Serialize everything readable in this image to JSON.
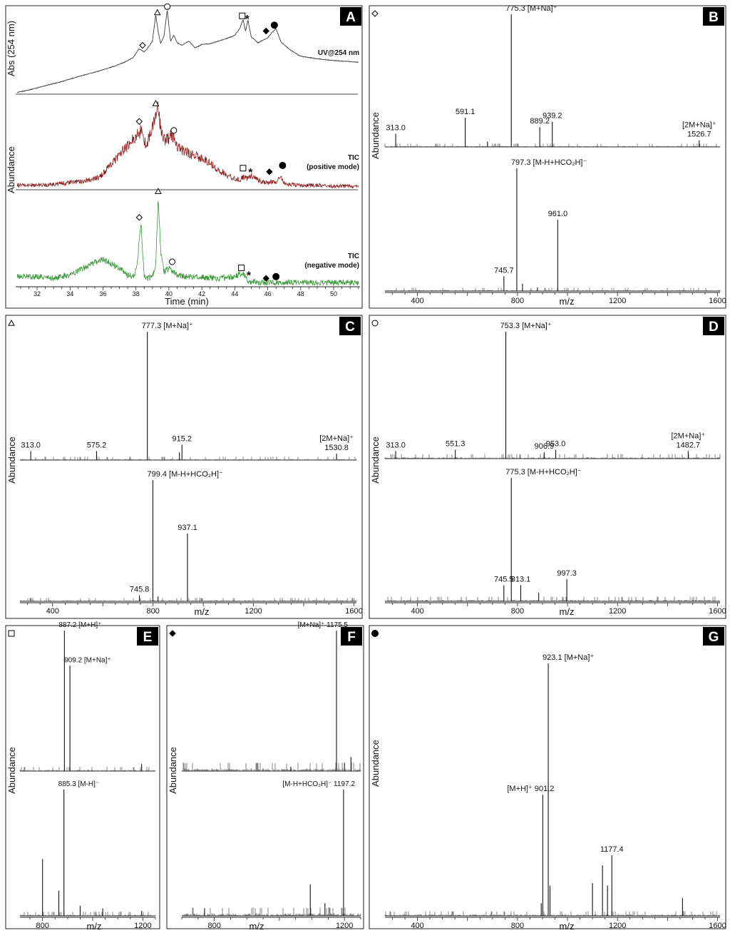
{
  "figure": {
    "panel_labels": [
      "A",
      "B",
      "C",
      "D",
      "E",
      "F",
      "G"
    ],
    "abundance_label": "Abundance",
    "mz_label": "m/z"
  },
  "chart_data": [
    {
      "panel": "A",
      "type": "line",
      "xlabel": "Time (min)",
      "xlim": [
        30.7,
        51.6
      ],
      "x_ticks": [
        32,
        34,
        36,
        38,
        40,
        42,
        44,
        46,
        48,
        50
      ],
      "ylabel_top": "Abs (254 nm)",
      "ylabel_bottom": "Abundance",
      "series": [
        {
          "name": "UV@254 nm",
          "label_lines": [
            "UV@254 nm"
          ],
          "color": "#3a3a3a",
          "x": [
            30.8,
            31.5,
            32.5,
            33.5,
            34.5,
            35.5,
            36.5,
            37.2,
            37.8,
            38.2,
            38.5,
            38.8,
            39.0,
            39.2,
            39.35,
            39.5,
            39.7,
            39.9,
            40.1,
            40.3,
            40.5,
            40.8,
            41.2,
            41.6,
            42.0,
            42.5,
            43.0,
            43.5,
            44.0,
            44.3,
            44.5,
            44.65,
            44.8,
            45.0,
            45.2,
            45.4,
            45.7,
            46.0,
            46.2,
            46.5,
            46.8,
            47.1,
            47.4,
            48.0,
            49.0,
            50.0,
            51.5
          ],
          "y": [
            0.02,
            0.05,
            0.1,
            0.15,
            0.21,
            0.26,
            0.32,
            0.37,
            0.43,
            0.54,
            0.5,
            0.57,
            0.63,
            0.94,
            0.74,
            0.6,
            0.69,
            1.0,
            0.63,
            0.7,
            0.61,
            0.58,
            0.63,
            0.55,
            0.59,
            0.6,
            0.63,
            0.66,
            0.7,
            0.78,
            0.89,
            0.75,
            0.88,
            0.68,
            0.65,
            0.61,
            0.64,
            0.67,
            0.72,
            0.78,
            0.62,
            0.57,
            0.52,
            0.45,
            0.42,
            0.4,
            0.38
          ],
          "markers": [
            {
              "symbol": "diamond-open",
              "x": 38.4,
              "y": 0.58
            },
            {
              "symbol": "triangle-open",
              "x": 39.3,
              "y": 0.97
            },
            {
              "symbol": "circle-open",
              "x": 39.9,
              "y": 1.04
            },
            {
              "symbol": "square-open",
              "x": 44.45,
              "y": 0.93
            },
            {
              "symbol": "asterisk",
              "x": 44.75,
              "y": 0.9
            },
            {
              "symbol": "diamond-filled",
              "x": 45.9,
              "y": 0.75
            },
            {
              "symbol": "circle-filled",
              "x": 46.4,
              "y": 0.82
            }
          ]
        },
        {
          "name": "TIC (positive mode)",
          "label_lines": [
            "TIC",
            "(positive mode)"
          ],
          "color": "#8b1b1b",
          "x": [
            30.8,
            32.0,
            33.0,
            34.0,
            35.0,
            35.8,
            36.2,
            36.6,
            37.0,
            37.5,
            38.0,
            38.3,
            38.6,
            39.0,
            39.3,
            39.6,
            39.9,
            40.2,
            40.6,
            41.0,
            41.5,
            42.0,
            42.5,
            43.0,
            43.5,
            44.0,
            44.3,
            44.5,
            44.8,
            45.0,
            45.5,
            46.0,
            46.5,
            46.8,
            47.0,
            47.3,
            48.0,
            49.0,
            50.0,
            51.5
          ],
          "y": [
            0.05,
            0.05,
            0.06,
            0.08,
            0.1,
            0.14,
            0.22,
            0.3,
            0.4,
            0.48,
            0.6,
            0.66,
            0.5,
            0.68,
            0.92,
            0.58,
            0.55,
            0.62,
            0.46,
            0.42,
            0.38,
            0.35,
            0.3,
            0.22,
            0.16,
            0.12,
            0.11,
            0.14,
            0.12,
            0.16,
            0.1,
            0.08,
            0.09,
            0.14,
            0.08,
            0.06,
            0.05,
            0.05,
            0.04,
            0.04
          ],
          "markers": [
            {
              "symbol": "diamond-open",
              "x": 38.2,
              "y": 0.76
            },
            {
              "symbol": "triangle-open",
              "x": 39.2,
              "y": 0.96
            },
            {
              "symbol": "circle-open",
              "x": 40.3,
              "y": 0.66
            },
            {
              "symbol": "square-open",
              "x": 44.5,
              "y": 0.24
            },
            {
              "symbol": "asterisk",
              "x": 44.95,
              "y": 0.2
            },
            {
              "symbol": "diamond-filled",
              "x": 46.1,
              "y": 0.2
            },
            {
              "symbol": "circle-filled",
              "x": 46.9,
              "y": 0.27
            }
          ]
        },
        {
          "name": "TIC (negative mode)",
          "label_lines": [
            "TIC",
            "(negative mode)"
          ],
          "color": "#3a9a3a",
          "x": [
            30.8,
            32.0,
            33.0,
            34.0,
            34.8,
            35.5,
            36.0,
            36.5,
            37.0,
            37.5,
            37.9,
            38.1,
            38.3,
            38.5,
            38.7,
            39.0,
            39.2,
            39.35,
            39.5,
            39.7,
            40.0,
            40.5,
            41.0,
            41.5,
            42.0,
            43.0,
            44.0,
            44.5,
            44.8,
            45.0,
            45.5,
            46.0,
            46.5,
            47.0,
            48.0,
            50.0,
            51.5
          ],
          "y": [
            0.1,
            0.1,
            0.08,
            0.12,
            0.2,
            0.26,
            0.3,
            0.25,
            0.2,
            0.12,
            0.1,
            0.3,
            0.72,
            0.12,
            0.08,
            0.1,
            0.22,
            1.0,
            0.4,
            0.15,
            0.2,
            0.12,
            0.1,
            0.1,
            0.09,
            0.08,
            0.1,
            0.14,
            0.05,
            0.04,
            0.03,
            0.03,
            0.03,
            0.03,
            0.03,
            0.03,
            0.03
          ],
          "markers": [
            {
              "symbol": "diamond-open",
              "x": 38.2,
              "y": 0.78
            },
            {
              "symbol": "triangle-open",
              "x": 39.35,
              "y": 1.08
            },
            {
              "symbol": "circle-open",
              "x": 40.2,
              "y": 0.27
            },
            {
              "symbol": "square-open",
              "x": 44.4,
              "y": 0.2
            },
            {
              "symbol": "asterisk",
              "x": 44.85,
              "y": 0.12
            },
            {
              "symbol": "diamond-filled",
              "x": 45.9,
              "y": 0.08
            },
            {
              "symbol": "circle-filled",
              "x": 46.5,
              "y": 0.1
            }
          ]
        }
      ]
    },
    {
      "panel": "B",
      "type": "bar",
      "compound_marker": "diamond-open",
      "xlabel": "m/z",
      "xlim": [
        270,
        1610
      ],
      "x_ticks": [
        400,
        800,
        1200,
        1600
      ],
      "spectra": [
        {
          "mode": "positive",
          "peaks": [
            {
              "mz": 313.0,
              "rel": 0.1,
              "label": "313.0"
            },
            {
              "mz": 591.1,
              "rel": 0.22,
              "label": "591.1"
            },
            {
              "mz": 680,
              "rel": 0.04
            },
            {
              "mz": 775.3,
              "rel": 1.0,
              "label": "775.3 [M+Na]⁺"
            },
            {
              "mz": 889.2,
              "rel": 0.15,
              "label": "889.2"
            },
            {
              "mz": 939.2,
              "rel": 0.19,
              "label": "939.2"
            },
            {
              "mz": 1526.7,
              "rel": 0.05,
              "label": "1526.7",
              "extra_label": "[2M+Na]⁺"
            }
          ]
        },
        {
          "mode": "negative",
          "peaks": [
            {
              "mz": 745.7,
              "rel": 0.12,
              "label": "745.7"
            },
            {
              "mz": 797.3,
              "rel": 1.0,
              "label": "797.3 [M-H+HCO₂H]⁻"
            },
            {
              "mz": 820,
              "rel": 0.06
            },
            {
              "mz": 880,
              "rel": 0.03
            },
            {
              "mz": 961.0,
              "rel": 0.58,
              "label": "961.0"
            }
          ]
        }
      ]
    },
    {
      "panel": "C",
      "type": "bar",
      "compound_marker": "triangle-open",
      "xlabel": "m/z",
      "xlim": [
        270,
        1610
      ],
      "x_ticks": [
        400,
        800,
        1200,
        1600
      ],
      "spectra": [
        {
          "mode": "positive",
          "peaks": [
            {
              "mz": 313.0,
              "rel": 0.07,
              "label": "313.0"
            },
            {
              "mz": 575.2,
              "rel": 0.07,
              "label": "575.2"
            },
            {
              "mz": 777.3,
              "rel": 1.0,
              "label": "777.3 [M+Na]⁺"
            },
            {
              "mz": 905,
              "rel": 0.06
            },
            {
              "mz": 915.2,
              "rel": 0.12,
              "label": "915.2"
            },
            {
              "mz": 1530.8,
              "rel": 0.05,
              "label": "1530.8",
              "extra_label": "[2M+Na]⁺"
            }
          ]
        },
        {
          "mode": "negative",
          "peaks": [
            {
              "mz": 745.8,
              "rel": 0.05,
              "label": "745.8"
            },
            {
              "mz": 799.4,
              "rel": 1.0,
              "label": "799.4 [M-H+HCO₂H]⁻"
            },
            {
              "mz": 820,
              "rel": 0.04
            },
            {
              "mz": 937.1,
              "rel": 0.56,
              "label": "937.1"
            }
          ]
        }
      ]
    },
    {
      "panel": "D",
      "type": "bar",
      "compound_marker": "circle-open",
      "xlabel": "m/z",
      "xlim": [
        270,
        1610
      ],
      "x_ticks": [
        400,
        800,
        1200,
        1600
      ],
      "spectra": [
        {
          "mode": "positive",
          "peaks": [
            {
              "mz": 313.0,
              "rel": 0.06,
              "label": "313.0"
            },
            {
              "mz": 551.3,
              "rel": 0.07,
              "label": "551.3"
            },
            {
              "mz": 753.3,
              "rel": 1.0,
              "label": "753.3 [M+Na]⁺"
            },
            {
              "mz": 906.9,
              "rel": 0.05,
              "label": "906.9"
            },
            {
              "mz": 953.0,
              "rel": 0.07,
              "label": "953.0"
            },
            {
              "mz": 1482.7,
              "rel": 0.06,
              "label": "1482.7",
              "extra_label": "[2M+Na]⁺"
            }
          ]
        },
        {
          "mode": "negative",
          "peaks": [
            {
              "mz": 745.5,
              "rel": 0.13,
              "label": "745.5"
            },
            {
              "mz": 775.3,
              "rel": 1.0,
              "label": "775.3 [M-H+HCO₂H]⁻"
            },
            {
              "mz": 813.1,
              "rel": 0.13,
              "label": "813.1"
            },
            {
              "mz": 885,
              "rel": 0.07
            },
            {
              "mz": 997.3,
              "rel": 0.18,
              "label": "997.3"
            }
          ]
        }
      ]
    },
    {
      "panel": "E",
      "type": "bar",
      "compound_marker": "square-open",
      "xlabel": "m/z",
      "xlim": [
        710,
        1250
      ],
      "x_ticks": [
        800,
        1200
      ],
      "spectra": [
        {
          "mode": "positive",
          "peaks": [
            {
              "mz": 887.2,
              "rel": 1.0,
              "label": "887.2 [M+H]⁺"
            },
            {
              "mz": 909.2,
              "rel": 0.75,
              "label": "909.2 [M+Na]⁺"
            },
            {
              "mz": 1195,
              "rel": 0.05
            }
          ]
        },
        {
          "mode": "negative",
          "peaks": [
            {
              "mz": 800,
              "rel": 0.45
            },
            {
              "mz": 865,
              "rel": 0.2
            },
            {
              "mz": 885.3,
              "rel": 1.0,
              "label": "885.3 [M-H]⁻"
            },
            {
              "mz": 950,
              "rel": 0.08
            },
            {
              "mz": 1040,
              "rel": 0.06
            },
            {
              "mz": 1195,
              "rel": 0.04
            }
          ]
        }
      ]
    },
    {
      "panel": "F",
      "type": "bar",
      "compound_marker": "diamond-filled",
      "xlabel": "m/z",
      "xlim": [
        700,
        1250
      ],
      "x_ticks": [
        800,
        1200
      ],
      "spectra": [
        {
          "mode": "positive",
          "peaks": [
            {
              "mz": 1035,
              "rel": 0.03
            },
            {
              "mz": 1175.5,
              "rel": 1.0,
              "label": "[M+Na]⁺ 1175.5"
            },
            {
              "mz": 1200,
              "rel": 0.06
            },
            {
              "mz": 1220,
              "rel": 0.1
            }
          ]
        },
        {
          "mode": "negative",
          "peaks": [
            {
              "mz": 770,
              "rel": 0.06
            },
            {
              "mz": 1095,
              "rel": 0.25
            },
            {
              "mz": 1140,
              "rel": 0.1
            },
            {
              "mz": 1197.2,
              "rel": 1.0,
              "label": "[M-H+HCO₂H]⁻ 1197.2"
            }
          ]
        }
      ]
    },
    {
      "panel": "G",
      "type": "bar",
      "compound_marker": "circle-filled",
      "xlabel": "m/z",
      "xlim": [
        270,
        1610
      ],
      "x_ticks": [
        400,
        800,
        1200,
        1600
      ],
      "spectra": [
        {
          "mode": "positive",
          "peaks": [
            {
              "mz": 895,
              "rel": 0.05
            },
            {
              "mz": 901.2,
              "rel": 0.48,
              "label": "[M+H]⁺ 901.2"
            },
            {
              "mz": 923.1,
              "rel": 1.0,
              "label": "923.1 [M+Na]⁺"
            },
            {
              "mz": 930,
              "rel": 0.12
            },
            {
              "mz": 1100,
              "rel": 0.13
            },
            {
              "mz": 1140,
              "rel": 0.2
            },
            {
              "mz": 1160,
              "rel": 0.12
            },
            {
              "mz": 1177.4,
              "rel": 0.24,
              "label": "1177.4"
            },
            {
              "mz": 1460,
              "rel": 0.07
            }
          ]
        }
      ]
    }
  ]
}
